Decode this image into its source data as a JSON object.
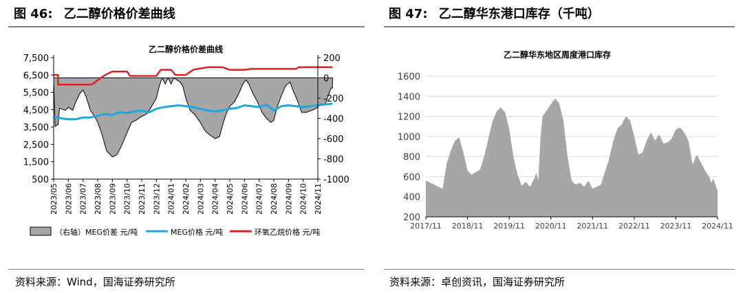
{
  "left_panel": {
    "figure_label": "图 46:",
    "figure_title": "乙二醇价格价差曲线",
    "source": "资料来源：Wind，国海证券研究所"
  },
  "right_panel": {
    "figure_label": "图 47:",
    "figure_title": "乙二醇华东港口库存（千吨）",
    "source": "资料来源：卓创资讯，国海证券研究所"
  },
  "chart_data": [
    {
      "type": "area",
      "title": "乙二醇价格价差曲线",
      "x_dates": [
        "2023/05",
        "2023/06",
        "2023/07",
        "2023/08",
        "2023/09",
        "2023/10",
        "2023/11",
        "2023/12",
        "2024/01",
        "2024/02",
        "2024/03",
        "2024/04",
        "2024/05",
        "2024/06",
        "2024/07",
        "2024/08",
        "2024/09",
        "2024/10",
        "2024/11"
      ],
      "y_left": {
        "min": 500,
        "max": 7500,
        "ticks": [
          "7,500",
          "6,500",
          "5,500",
          "4,500",
          "3,500",
          "2,500",
          "1,500",
          "500"
        ],
        "tick_values": [
          7500,
          6500,
          5500,
          4500,
          3500,
          2500,
          1500,
          500
        ]
      },
      "y_right": {
        "min": -1000,
        "max": 200,
        "ticks": [
          "200",
          "0",
          "-200",
          "-400",
          "-600",
          "-800",
          "-1000"
        ],
        "tick_values": [
          200,
          0,
          -200,
          -400,
          -600,
          -800,
          -1000
        ]
      },
      "legend": [
        "（右轴）MEG价差 元/吨",
        "MEG价格 元/吨",
        "环氧乙烷价格 元/吨"
      ],
      "series": [
        {
          "name": "（右轴）MEG价差 元/吨",
          "axis": "right",
          "color": "#a6a6a6",
          "points": [
            [
              0,
              -40
            ],
            [
              0.1,
              -480
            ],
            [
              0.3,
              -460
            ],
            [
              0.4,
              -300
            ],
            [
              0.8,
              -320
            ],
            [
              1.0,
              -290
            ],
            [
              1.3,
              -320
            ],
            [
              1.5,
              -240
            ],
            [
              1.8,
              -150
            ],
            [
              2.0,
              -120
            ],
            [
              2.2,
              -180
            ],
            [
              2.5,
              -320
            ],
            [
              2.8,
              -380
            ],
            [
              3.0,
              -440
            ],
            [
              3.3,
              -560
            ],
            [
              3.6,
              -720
            ],
            [
              4.0,
              -780
            ],
            [
              4.3,
              -760
            ],
            [
              4.6,
              -680
            ],
            [
              5.0,
              -540
            ],
            [
              5.3,
              -440
            ],
            [
              5.6,
              -420
            ],
            [
              6.0,
              -380
            ],
            [
              6.3,
              -360
            ],
            [
              6.6,
              -300
            ],
            [
              7.0,
              -200
            ],
            [
              7.2,
              -80
            ],
            [
              7.4,
              0
            ],
            [
              7.6,
              -60
            ],
            [
              7.8,
              0
            ],
            [
              8.0,
              -60
            ],
            [
              8.2,
              0
            ],
            [
              8.4,
              -20
            ],
            [
              8.6,
              -40
            ],
            [
              8.8,
              -80
            ],
            [
              9.0,
              -200
            ],
            [
              9.3,
              -320
            ],
            [
              9.6,
              -360
            ],
            [
              10.0,
              -440
            ],
            [
              10.3,
              -520
            ],
            [
              10.6,
              -560
            ],
            [
              11.0,
              -600
            ],
            [
              11.3,
              -580
            ],
            [
              11.6,
              -420
            ],
            [
              11.8,
              -340
            ],
            [
              12.0,
              -280
            ],
            [
              12.3,
              -240
            ],
            [
              12.6,
              -160
            ],
            [
              12.9,
              -60
            ],
            [
              13.1,
              -20
            ],
            [
              13.3,
              -60
            ],
            [
              13.6,
              -160
            ],
            [
              13.9,
              -240
            ],
            [
              14.2,
              -340
            ],
            [
              14.5,
              -400
            ],
            [
              14.8,
              -440
            ],
            [
              15.0,
              -420
            ],
            [
              15.2,
              -300
            ],
            [
              15.5,
              -180
            ],
            [
              15.8,
              -80
            ],
            [
              16.1,
              -40
            ],
            [
              16.3,
              -120
            ],
            [
              16.6,
              -220
            ],
            [
              16.9,
              -340
            ],
            [
              17.2,
              -340
            ],
            [
              17.6,
              -320
            ],
            [
              17.9,
              -300
            ],
            [
              18.2,
              -260
            ],
            [
              18.5,
              -260
            ],
            [
              18.9,
              -100
            ],
            [
              19.0,
              -100
            ]
          ]
        },
        {
          "name": "MEG价格 元/吨",
          "axis": "left",
          "color": "#1ea7e1",
          "points": [
            [
              0,
              4100
            ],
            [
              0.5,
              4000
            ],
            [
              1.0,
              3950
            ],
            [
              1.5,
              3950
            ],
            [
              2.0,
              4050
            ],
            [
              2.5,
              4050
            ],
            [
              3.0,
              4150
            ],
            [
              3.5,
              4250
            ],
            [
              4.0,
              4200
            ],
            [
              4.5,
              4350
            ],
            [
              5.0,
              4300
            ],
            [
              5.5,
              4400
            ],
            [
              6.0,
              4450
            ],
            [
              6.5,
              4350
            ],
            [
              7.0,
              4550
            ],
            [
              7.5,
              4650
            ],
            [
              8.0,
              4700
            ],
            [
              8.5,
              4750
            ],
            [
              9.0,
              4700
            ],
            [
              9.5,
              4650
            ],
            [
              10.0,
              4550
            ],
            [
              10.5,
              4450
            ],
            [
              11.0,
              4400
            ],
            [
              11.5,
              4450
            ],
            [
              12.0,
              4550
            ],
            [
              12.5,
              4600
            ],
            [
              13.0,
              4750
            ],
            [
              13.5,
              4700
            ],
            [
              14.0,
              4650
            ],
            [
              14.5,
              4800
            ],
            [
              15.0,
              4450
            ],
            [
              15.5,
              4700
            ],
            [
              16.0,
              4750
            ],
            [
              16.5,
              4700
            ],
            [
              17.0,
              4650
            ],
            [
              17.5,
              4700
            ],
            [
              18.0,
              4750
            ],
            [
              18.5,
              4800
            ],
            [
              19.0,
              4850
            ]
          ]
        },
        {
          "name": "环氧乙烷价格 元/吨",
          "axis": "left",
          "color": "#e02020",
          "points": [
            [
              0,
              6500
            ],
            [
              0.3,
              6500
            ],
            [
              0.3,
              5950
            ],
            [
              2.6,
              5950
            ],
            [
              3.0,
              6200
            ],
            [
              3.5,
              6500
            ],
            [
              4.0,
              6700
            ],
            [
              5.0,
              6700
            ],
            [
              5.2,
              6450
            ],
            [
              7.0,
              6450
            ],
            [
              7.3,
              6800
            ],
            [
              8.0,
              6800
            ],
            [
              8.3,
              6500
            ],
            [
              9.0,
              6500
            ],
            [
              9.5,
              6800
            ],
            [
              10.5,
              6950
            ],
            [
              11.5,
              6950
            ],
            [
              12.0,
              6800
            ],
            [
              13.0,
              6800
            ],
            [
              13.5,
              6850
            ],
            [
              14.5,
              6850
            ],
            [
              15.0,
              6850
            ],
            [
              16.5,
              6850
            ],
            [
              16.7,
              6950
            ],
            [
              19.0,
              6950
            ]
          ]
        }
      ]
    },
    {
      "type": "area",
      "title": "乙二醇华东地区周度港口库存",
      "x_ticks": [
        "2017/11",
        "2018/11",
        "2019/11",
        "2020/11",
        "2021/11",
        "2022/11",
        "2023/11",
        "2024/11"
      ],
      "y_axis": {
        "min": 200,
        "max": 1600,
        "ticks": [
          "1600",
          "1400",
          "1200",
          "1000",
          "800",
          "600",
          "400",
          "200"
        ],
        "tick_values": [
          1600,
          1400,
          1200,
          1000,
          800,
          600,
          400,
          200
        ]
      },
      "series": [
        {
          "name": "乙二醇华东地区周度港口库存",
          "color": "#a6a6a6",
          "points": [
            [
              0,
              560
            ],
            [
              0.2,
              520
            ],
            [
              0.4,
              480
            ],
            [
              0.5,
              730
            ],
            [
              0.6,
              860
            ],
            [
              0.7,
              960
            ],
            [
              0.8,
              990
            ],
            [
              0.9,
              840
            ],
            [
              1.0,
              660
            ],
            [
              1.1,
              620
            ],
            [
              1.3,
              670
            ],
            [
              1.4,
              800
            ],
            [
              1.5,
              980
            ],
            [
              1.6,
              1150
            ],
            [
              1.7,
              1250
            ],
            [
              1.8,
              1290
            ],
            [
              1.9,
              1240
            ],
            [
              2.0,
              1080
            ],
            [
              2.1,
              800
            ],
            [
              2.2,
              620
            ],
            [
              2.3,
              510
            ],
            [
              2.4,
              550
            ],
            [
              2.5,
              500
            ],
            [
              2.6,
              580
            ],
            [
              2.65,
              640
            ],
            [
              2.7,
              560
            ],
            [
              2.75,
              980
            ],
            [
              2.8,
              1200
            ],
            [
              2.9,
              1260
            ],
            [
              3.0,
              1320
            ],
            [
              3.1,
              1380
            ],
            [
              3.2,
              1330
            ],
            [
              3.3,
              1160
            ],
            [
              3.4,
              800
            ],
            [
              3.5,
              560
            ],
            [
              3.6,
              520
            ],
            [
              3.7,
              540
            ],
            [
              3.8,
              500
            ],
            [
              3.9,
              560
            ],
            [
              4.0,
              480
            ],
            [
              4.1,
              500
            ],
            [
              4.2,
              520
            ],
            [
              4.4,
              780
            ],
            [
              4.5,
              960
            ],
            [
              4.6,
              1080
            ],
            [
              4.7,
              1120
            ],
            [
              4.8,
              1200
            ],
            [
              4.9,
              1160
            ],
            [
              5.0,
              1000
            ],
            [
              5.1,
              820
            ],
            [
              5.2,
              840
            ],
            [
              5.3,
              960
            ],
            [
              5.4,
              1040
            ],
            [
              5.5,
              960
            ],
            [
              5.6,
              1020
            ],
            [
              5.7,
              930
            ],
            [
              5.8,
              940
            ],
            [
              5.9,
              980
            ],
            [
              6.0,
              1070
            ],
            [
              6.1,
              1090
            ],
            [
              6.2,
              1040
            ],
            [
              6.3,
              960
            ],
            [
              6.4,
              720
            ],
            [
              6.5,
              820
            ],
            [
              6.6,
              740
            ],
            [
              6.7,
              660
            ],
            [
              6.8,
              600
            ],
            [
              6.85,
              540
            ],
            [
              6.9,
              580
            ],
            [
              6.95,
              520
            ],
            [
              7.0,
              460
            ]
          ]
        }
      ]
    }
  ]
}
